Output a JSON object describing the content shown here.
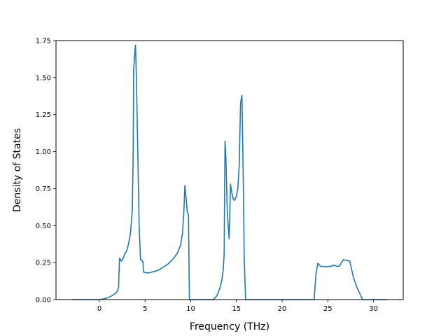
{
  "chart_data": {
    "type": "line",
    "title": "",
    "xlabel": "Frequency (THz)",
    "ylabel": "Density of States",
    "xlim": [
      -4.75,
      33.25
    ],
    "ylim": [
      0,
      1.75
    ],
    "grid": false,
    "line_color": "#1f77b4",
    "xticks": [
      {
        "value": 0,
        "label": "0"
      },
      {
        "value": 5,
        "label": "5"
      },
      {
        "value": 10,
        "label": "10"
      },
      {
        "value": 15,
        "label": "15"
      },
      {
        "value": 20,
        "label": "20"
      },
      {
        "value": 25,
        "label": "25"
      },
      {
        "value": 30,
        "label": "30"
      }
    ],
    "yticks": [
      {
        "value": 0.0,
        "label": "0.00"
      },
      {
        "value": 0.25,
        "label": "0.25"
      },
      {
        "value": 0.5,
        "label": "0.50"
      },
      {
        "value": 0.75,
        "label": "0.75"
      },
      {
        "value": 1.0,
        "label": "1.00"
      },
      {
        "value": 1.25,
        "label": "1.25"
      },
      {
        "value": 1.5,
        "label": "1.50"
      },
      {
        "value": 1.75,
        "label": "1.75"
      }
    ],
    "series": [
      {
        "name": "",
        "points": [
          [
            -3.0,
            0.0
          ],
          [
            -1.0,
            0.0
          ],
          [
            0.0,
            0.0
          ],
          [
            0.5,
            0.005
          ],
          [
            1.0,
            0.015
          ],
          [
            1.5,
            0.03
          ],
          [
            1.9,
            0.05
          ],
          [
            2.1,
            0.08
          ],
          [
            2.2,
            0.28
          ],
          [
            2.4,
            0.26
          ],
          [
            2.6,
            0.28
          ],
          [
            2.8,
            0.31
          ],
          [
            3.0,
            0.33
          ],
          [
            3.2,
            0.38
          ],
          [
            3.4,
            0.45
          ],
          [
            3.6,
            0.6
          ],
          [
            3.7,
            1.0
          ],
          [
            3.75,
            1.55
          ],
          [
            3.85,
            1.65
          ],
          [
            3.95,
            1.72
          ],
          [
            4.05,
            1.5
          ],
          [
            4.2,
            1.0
          ],
          [
            4.35,
            0.5
          ],
          [
            4.5,
            0.27
          ],
          [
            4.75,
            0.26
          ],
          [
            4.85,
            0.185
          ],
          [
            5.2,
            0.18
          ],
          [
            5.5,
            0.182
          ],
          [
            6.0,
            0.19
          ],
          [
            6.5,
            0.2
          ],
          [
            7.0,
            0.22
          ],
          [
            7.5,
            0.24
          ],
          [
            8.0,
            0.27
          ],
          [
            8.5,
            0.31
          ],
          [
            8.9,
            0.37
          ],
          [
            9.1,
            0.45
          ],
          [
            9.25,
            0.6
          ],
          [
            9.35,
            0.77
          ],
          [
            9.5,
            0.68
          ],
          [
            9.6,
            0.6
          ],
          [
            9.75,
            0.57
          ],
          [
            9.85,
            0.0
          ],
          [
            12.5,
            0.0
          ],
          [
            12.9,
            0.03
          ],
          [
            13.2,
            0.08
          ],
          [
            13.4,
            0.13
          ],
          [
            13.55,
            0.2
          ],
          [
            13.65,
            0.3
          ],
          [
            13.75,
            1.07
          ],
          [
            13.85,
            0.95
          ],
          [
            14.0,
            0.58
          ],
          [
            14.1,
            0.5
          ],
          [
            14.2,
            0.41
          ],
          [
            14.35,
            0.78
          ],
          [
            14.5,
            0.72
          ],
          [
            14.65,
            0.68
          ],
          [
            14.8,
            0.67
          ],
          [
            15.0,
            0.7
          ],
          [
            15.15,
            0.75
          ],
          [
            15.3,
            0.9
          ],
          [
            15.45,
            1.33
          ],
          [
            15.6,
            1.38
          ],
          [
            15.75,
            0.8
          ],
          [
            15.85,
            0.28
          ],
          [
            16.0,
            0.0
          ],
          [
            23.5,
            0.0
          ],
          [
            23.7,
            0.17
          ],
          [
            23.9,
            0.245
          ],
          [
            24.2,
            0.225
          ],
          [
            24.8,
            0.222
          ],
          [
            25.3,
            0.225
          ],
          [
            25.7,
            0.232
          ],
          [
            26.0,
            0.224
          ],
          [
            26.3,
            0.228
          ],
          [
            26.5,
            0.25
          ],
          [
            26.7,
            0.27
          ],
          [
            27.0,
            0.265
          ],
          [
            27.4,
            0.26
          ],
          [
            27.8,
            0.15
          ],
          [
            28.2,
            0.08
          ],
          [
            28.5,
            0.04
          ],
          [
            28.8,
            0.0
          ],
          [
            31.5,
            0.0
          ]
        ]
      }
    ]
  }
}
